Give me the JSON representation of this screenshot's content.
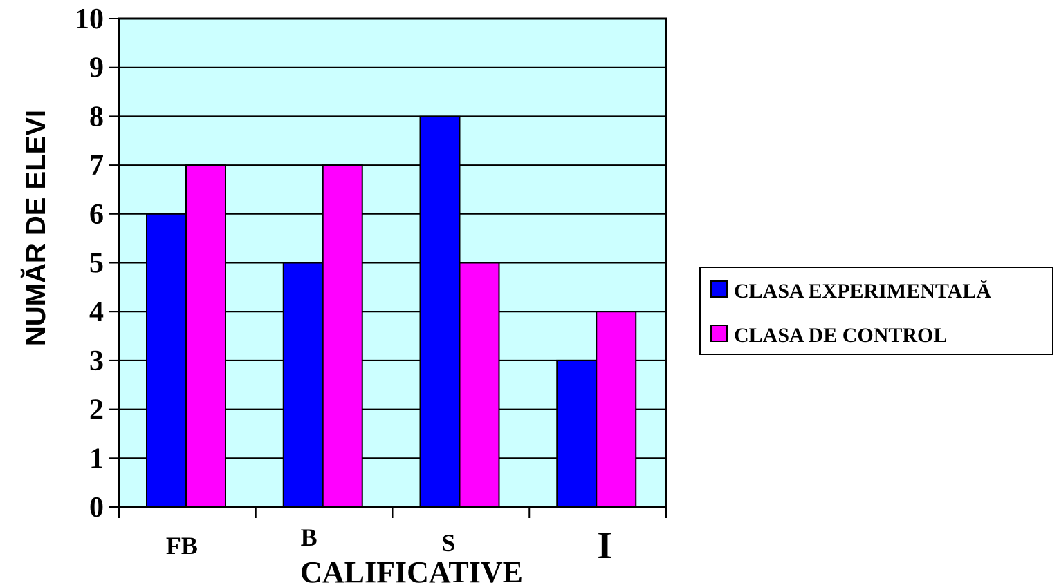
{
  "chart_data": {
    "type": "bar",
    "title": "",
    "xlabel": "CALIFICATIVE",
    "ylabel": "NUMĂR  DE  ELEVI",
    "categories": [
      "FB",
      "B",
      "S",
      "I"
    ],
    "series": [
      {
        "name": "CLASA EXPERIMENTALĂ",
        "values": [
          6,
          5,
          8,
          3
        ],
        "color": "#0000ff"
      },
      {
        "name": "CLASA DE CONTROL",
        "values": [
          7,
          7,
          5,
          4
        ],
        "color": "#ff00ff"
      }
    ],
    "ylim": [
      0,
      10
    ],
    "yticks": [
      "0",
      "1",
      "2",
      "3",
      "4",
      "5",
      "6",
      "7",
      "8",
      "9",
      "10"
    ],
    "grid": true,
    "legend_position": "right",
    "plot_background": "#ccffff"
  }
}
